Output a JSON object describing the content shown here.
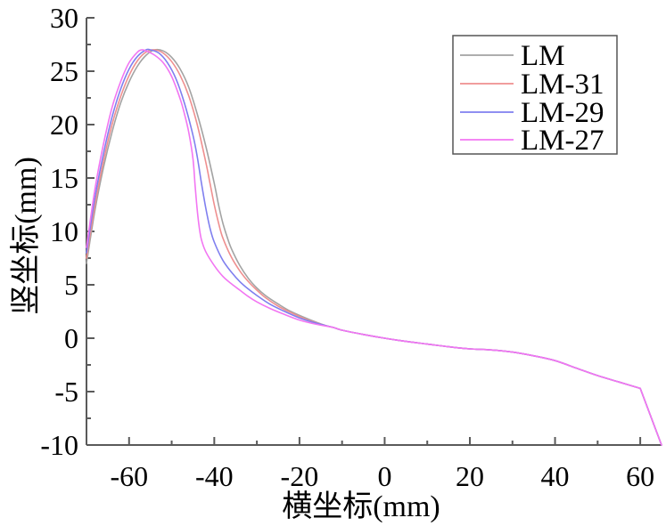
{
  "chart_data": {
    "type": "line",
    "xlabel": "横坐标(mm)",
    "ylabel": "竖坐标(mm)",
    "xlim": [
      -70,
      65
    ],
    "ylim": [
      -10,
      30
    ],
    "x_ticks": [
      -60,
      -40,
      -20,
      0,
      20,
      40,
      60
    ],
    "x_tick_labels": [
      "-60",
      "-40",
      "-20",
      "0",
      "20",
      "40",
      "60"
    ],
    "y_ticks": [
      30,
      25,
      20,
      15,
      10,
      5,
      0,
      -5,
      -10
    ],
    "y_tick_labels": [
      "30",
      "25",
      "20",
      "15",
      "10",
      "5",
      "0",
      "-5",
      "-10"
    ],
    "grid": false,
    "legend": {
      "position": "top-right"
    },
    "series": [
      {
        "name": "LM",
        "color": "#a3a3a3",
        "x": [
          -70,
          -68,
          -66,
          -64,
          -62,
          -60,
          -58,
          -56,
          -54,
          -52,
          -50,
          -48,
          -46,
          -44,
          -42,
          -40,
          -39,
          -38,
          -37,
          -36,
          -34,
          -32,
          -30,
          -28,
          -25,
          -22,
          -18,
          -14,
          -12,
          -10,
          -5,
          0,
          5,
          10,
          15,
          20,
          25,
          30,
          35,
          40,
          45,
          50,
          55,
          60,
          65
        ],
        "y": [
          7,
          12,
          16,
          19.3,
          22,
          24,
          25.5,
          26.5,
          27,
          26.9,
          26.3,
          25.2,
          23.5,
          21,
          18,
          14.5,
          12.5,
          10.8,
          9.5,
          8.4,
          6.8,
          5.6,
          4.7,
          4,
          3.2,
          2.5,
          1.8,
          1.2,
          1,
          0.75,
          0.35,
          0,
          -0.3,
          -0.55,
          -0.8,
          -1,
          -1.1,
          -1.3,
          -1.65,
          -2.1,
          -2.8,
          -3.5,
          -4.1,
          -4.7,
          -10
        ]
      },
      {
        "name": "LM-31",
        "color": "#ef8f8f",
        "x": [
          -70,
          -68,
          -66,
          -64,
          -62,
          -60,
          -58,
          -56,
          -54,
          -52,
          -50,
          -48,
          -46,
          -44,
          -42,
          -41,
          -40,
          -39,
          -38,
          -36,
          -34,
          -32,
          -30,
          -28,
          -25,
          -22,
          -18,
          -14,
          -12,
          -10,
          -5,
          0,
          5,
          10,
          15,
          20,
          25,
          30,
          35,
          40,
          45,
          50,
          55,
          60,
          65
        ],
        "y": [
          7.5,
          12.5,
          16.6,
          20,
          22.6,
          24.6,
          26,
          26.8,
          27,
          26.7,
          25.9,
          24.6,
          22.7,
          20,
          16.5,
          14.5,
          12.5,
          10.8,
          9.4,
          7.6,
          6.3,
          5.3,
          4.5,
          3.8,
          3,
          2.4,
          1.7,
          1.2,
          1,
          0.75,
          0.35,
          0,
          -0.3,
          -0.55,
          -0.8,
          -1,
          -1.1,
          -1.3,
          -1.65,
          -2.1,
          -2.8,
          -3.5,
          -4.1,
          -4.7,
          -10
        ]
      },
      {
        "name": "LM-29",
        "color": "#7f7fef",
        "x": [
          -70,
          -68,
          -66,
          -64,
          -62,
          -60,
          -58,
          -56,
          -55,
          -53,
          -51,
          -49,
          -47,
          -45,
          -44,
          -43,
          -42,
          -41,
          -40,
          -38,
          -36,
          -34,
          -32,
          -30,
          -27,
          -24,
          -20,
          -16,
          -12,
          -10,
          -5,
          0,
          5,
          10,
          15,
          20,
          25,
          30,
          35,
          40,
          45,
          50,
          55,
          60,
          65
        ],
        "y": [
          8,
          13.2,
          17.3,
          20.7,
          23.3,
          25.2,
          26.4,
          27,
          27,
          26.7,
          25.8,
          24.3,
          22,
          19,
          17,
          14.5,
          12.2,
          10.3,
          9,
          7.3,
          6.2,
          5.3,
          4.6,
          4,
          3.2,
          2.6,
          1.9,
          1.4,
          1,
          0.75,
          0.35,
          0,
          -0.3,
          -0.55,
          -0.8,
          -1,
          -1.1,
          -1.3,
          -1.65,
          -2.1,
          -2.8,
          -3.5,
          -4.1,
          -4.7,
          -10
        ]
      },
      {
        "name": "LM-27",
        "color": "#f276f2",
        "x": [
          -70,
          -68,
          -66,
          -64,
          -62,
          -60,
          -58,
          -57,
          -56,
          -54,
          -52,
          -50,
          -48,
          -47,
          -46,
          -45,
          -44.5,
          -44,
          -43.5,
          -43,
          -42,
          -40,
          -38,
          -36,
          -34,
          -32,
          -30,
          -27,
          -24,
          -20,
          -16,
          -12,
          -10,
          -5,
          0,
          5,
          10,
          15,
          20,
          25,
          30,
          35,
          40,
          45,
          50,
          55,
          60,
          65
        ],
        "y": [
          8.5,
          14,
          18.2,
          21.6,
          24,
          25.8,
          26.8,
          27,
          26.9,
          26.5,
          25.8,
          24.5,
          22.4,
          21,
          19.3,
          16.8,
          14.3,
          12,
          10.3,
          9.2,
          8.1,
          6.8,
          5.8,
          5.1,
          4.5,
          3.9,
          3.4,
          2.8,
          2.3,
          1.7,
          1.3,
          1,
          0.75,
          0.35,
          0,
          -0.3,
          -0.55,
          -0.8,
          -1,
          -1.1,
          -1.3,
          -1.65,
          -2.1,
          -2.8,
          -3.5,
          -4.1,
          -4.7,
          -10
        ]
      }
    ]
  }
}
